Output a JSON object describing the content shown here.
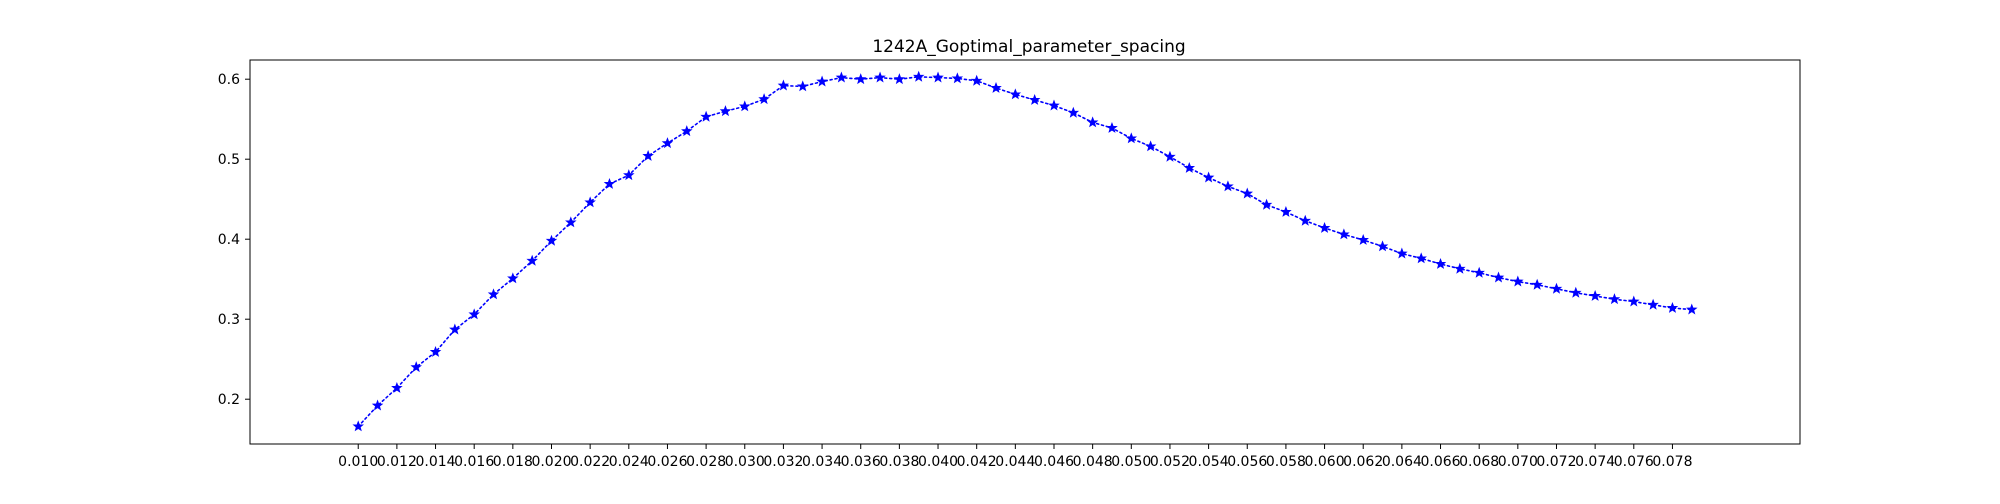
{
  "chart_data": {
    "type": "line",
    "title": "1242A_Goptimal_parameter_spacing",
    "xlabel": "",
    "ylabel": "",
    "xlim": [
      0.0044,
      0.0846
    ],
    "ylim": [
      0.144,
      0.624
    ],
    "grid": false,
    "legend": "none",
    "colors": {
      "series": "#0000ff",
      "axes": "#000000",
      "background": "#ffffff"
    },
    "line_style": "dotted",
    "marker": "star",
    "x_ticks": [
      0.01,
      0.012,
      0.014,
      0.016,
      0.018,
      0.02,
      0.022,
      0.024,
      0.026,
      0.028,
      0.03,
      0.032,
      0.034,
      0.036,
      0.038,
      0.04,
      0.042,
      0.044,
      0.046,
      0.048,
      0.05,
      0.052,
      0.054,
      0.056,
      0.058,
      0.06,
      0.062,
      0.064,
      0.066,
      0.068,
      0.07,
      0.072,
      0.074,
      0.076,
      0.078
    ],
    "x_tick_labels": [
      "0.010",
      "0.012",
      "0.014",
      "0.016",
      "0.018",
      "0.020",
      "0.022",
      "0.024",
      "0.026",
      "0.028",
      "0.030",
      "0.032",
      "0.034",
      "0.036",
      "0.038",
      "0.040",
      "0.042",
      "0.044",
      "0.046",
      "0.048",
      "0.050",
      "0.052",
      "0.054",
      "0.056",
      "0.058",
      "0.060",
      "0.062",
      "0.064",
      "0.066",
      "0.068",
      "0.070",
      "0.072",
      "0.074",
      "0.076",
      "0.078"
    ],
    "y_ticks": [
      0.2,
      0.3,
      0.4,
      0.5,
      0.6
    ],
    "y_tick_labels": [
      "0.2",
      "0.3",
      "0.4",
      "0.5",
      "0.6"
    ],
    "x": [
      0.01,
      0.011,
      0.012,
      0.013,
      0.014,
      0.015,
      0.016,
      0.017,
      0.018,
      0.019,
      0.02,
      0.021,
      0.022,
      0.023,
      0.024,
      0.025,
      0.026,
      0.027,
      0.028,
      0.029,
      0.03,
      0.031,
      0.032,
      0.033,
      0.034,
      0.035,
      0.036,
      0.037,
      0.038,
      0.039,
      0.04,
      0.041,
      0.042,
      0.043,
      0.044,
      0.045,
      0.046,
      0.047,
      0.048,
      0.049,
      0.05,
      0.051,
      0.052,
      0.053,
      0.054,
      0.055,
      0.056,
      0.057,
      0.058,
      0.059,
      0.06,
      0.061,
      0.062,
      0.063,
      0.064,
      0.065,
      0.066,
      0.067,
      0.068,
      0.069,
      0.07,
      0.071,
      0.072,
      0.073,
      0.074,
      0.075,
      0.076,
      0.077,
      0.078,
      0.079
    ],
    "series": [
      {
        "values": [
          0.166,
          0.192,
          0.214,
          0.24,
          0.259,
          0.287,
          0.306,
          0.331,
          0.351,
          0.373,
          0.398,
          0.421,
          0.446,
          0.469,
          0.48,
          0.504,
          0.52,
          0.535,
          0.553,
          0.56,
          0.566,
          0.575,
          0.592,
          0.591,
          0.597,
          0.602,
          0.6,
          0.602,
          0.6,
          0.603,
          0.602,
          0.601,
          0.598,
          0.589,
          0.581,
          0.574,
          0.567,
          0.558,
          0.546,
          0.539,
          0.526,
          0.516,
          0.503,
          0.489,
          0.477,
          0.466,
          0.457,
          0.443,
          0.434,
          0.423,
          0.414,
          0.406,
          0.399,
          0.391,
          0.382,
          0.376,
          0.369,
          0.363,
          0.358,
          0.352,
          0.347,
          0.343,
          0.338,
          0.333,
          0.329,
          0.325,
          0.322,
          0.318,
          0.314,
          0.312
        ]
      }
    ]
  }
}
